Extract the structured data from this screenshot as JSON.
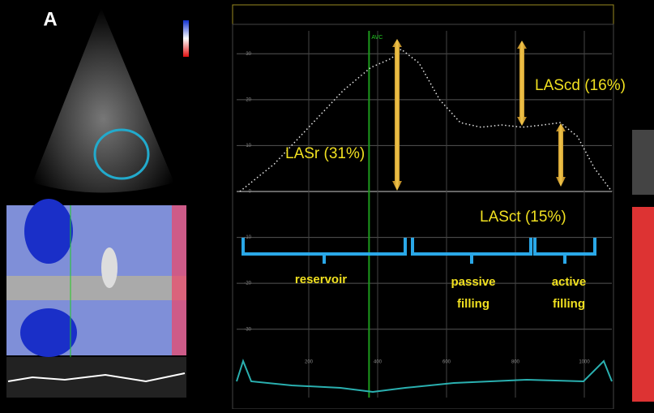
{
  "panel_label": "A",
  "chart_data": {
    "type": "line",
    "x": [
      0,
      100,
      200,
      300,
      380,
      440,
      468,
      520,
      580,
      640,
      700,
      760,
      820,
      880,
      930,
      980,
      1030,
      1080
    ],
    "values": [
      0,
      6,
      14,
      22,
      27,
      29,
      31,
      28,
      20,
      15,
      14,
      14.5,
      14,
      14.5,
      15,
      12,
      5,
      0
    ],
    "color": "#e8e8e8",
    "xlim": [
      0,
      1080
    ],
    "ylim": [
      -35,
      35
    ],
    "xticks": [
      200,
      400,
      600,
      800,
      1000
    ],
    "yticks": [
      30,
      20,
      10,
      0,
      -10,
      -20,
      -30
    ],
    "grid": true,
    "event": {
      "label": "AVC",
      "x": 375
    },
    "annotations": [
      "LASr (31%)",
      "LAScd (16%)",
      "LASct (15%)",
      "reservoir",
      "passive",
      "filling",
      "active",
      "filling"
    ]
  }
}
